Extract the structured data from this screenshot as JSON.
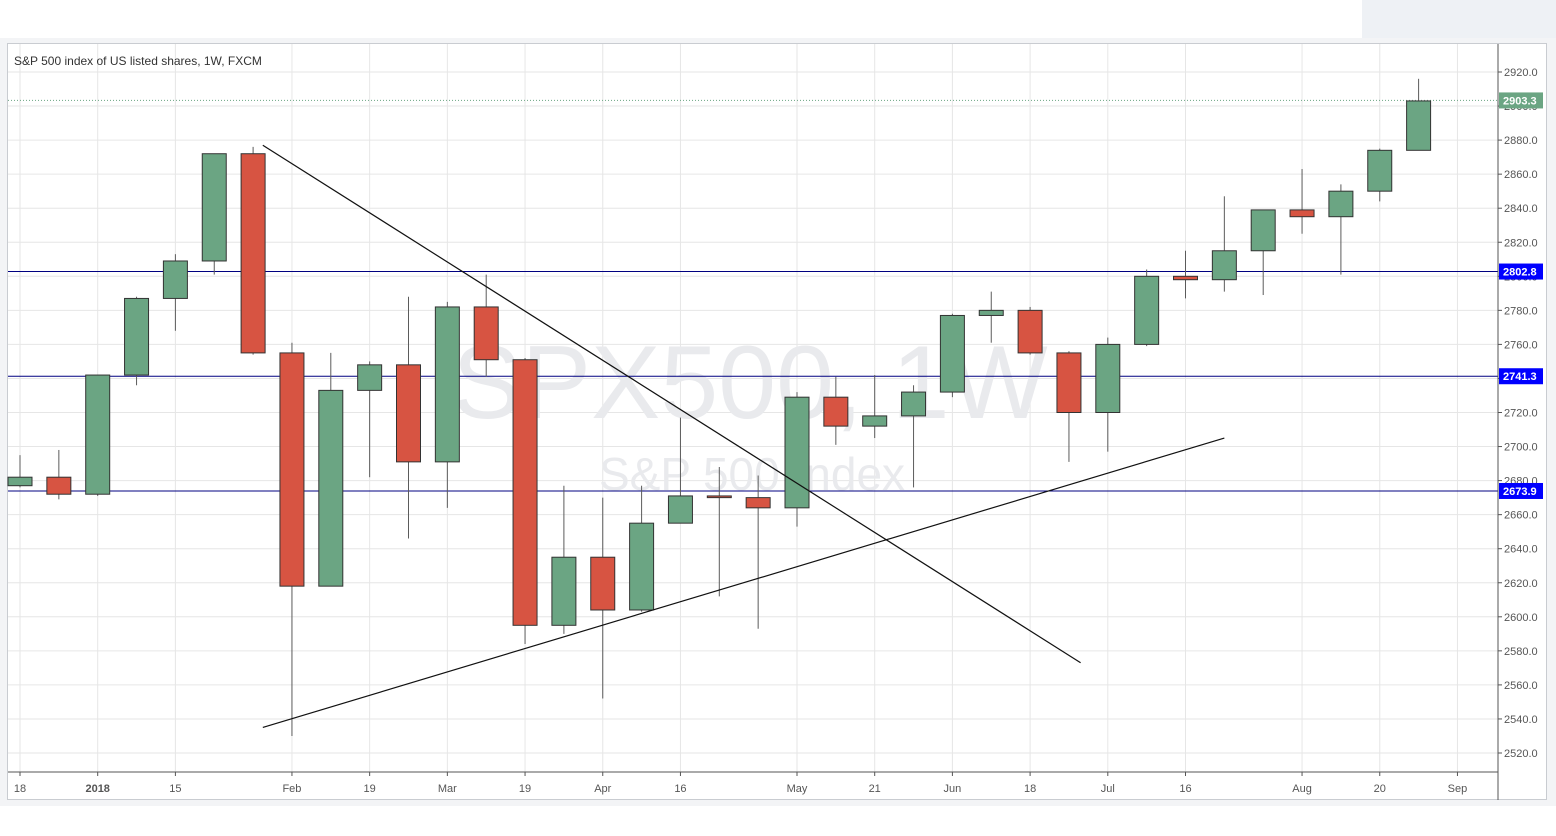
{
  "chart_data": {
    "type": "candlestick",
    "title": "S&P 500 index of US listed shares, 1W, FXCM",
    "watermark": {
      "symbol": "SPX500, 1W",
      "description": "S&P 500 Index"
    },
    "y_range": [
      2510,
      2930
    ],
    "y_ticks": [
      2520,
      2540,
      2560,
      2580,
      2600,
      2620,
      2640,
      2660,
      2680,
      2700,
      2720,
      2740,
      2760,
      2780,
      2800,
      2820,
      2840,
      2860,
      2880,
      2900,
      2920
    ],
    "x_ticks": [
      {
        "label": "18",
        "index": 0
      },
      {
        "label": "2018",
        "index": 2,
        "bold": true
      },
      {
        "label": "15",
        "index": 4
      },
      {
        "label": "Feb",
        "index": 7
      },
      {
        "label": "19",
        "index": 9
      },
      {
        "label": "Mar",
        "index": 11
      },
      {
        "label": "19",
        "index": 13
      },
      {
        "label": "Apr",
        "index": 15
      },
      {
        "label": "16",
        "index": 17
      },
      {
        "label": "May",
        "index": 20
      },
      {
        "label": "21",
        "index": 22
      },
      {
        "label": "Jun",
        "index": 24
      },
      {
        "label": "18",
        "index": 26
      },
      {
        "label": "Jul",
        "index": 28
      },
      {
        "label": "16",
        "index": 30
      },
      {
        "label": "Aug",
        "index": 33
      },
      {
        "label": "20",
        "index": 35
      },
      {
        "label": "Sep",
        "index": 37
      }
    ],
    "candles": [
      {
        "o": 2677,
        "h": 2695,
        "l": 2676,
        "c": 2682
      },
      {
        "o": 2682,
        "h": 2698,
        "l": 2669,
        "c": 2672
      },
      {
        "o": 2672,
        "h": 2742,
        "l": 2671,
        "c": 2742
      },
      {
        "o": 2742,
        "h": 2788,
        "l": 2736,
        "c": 2787
      },
      {
        "o": 2787,
        "h": 2813,
        "l": 2768,
        "c": 2809
      },
      {
        "o": 2809,
        "h": 2872,
        "l": 2801,
        "c": 2872
      },
      {
        "o": 2872,
        "h": 2876,
        "l": 2754,
        "c": 2755
      },
      {
        "o": 2755,
        "h": 2761,
        "l": 2530,
        "c": 2618
      },
      {
        "o": 2618,
        "h": 2755,
        "l": 2618,
        "c": 2733
      },
      {
        "o": 2733,
        "h": 2750,
        "l": 2682,
        "c": 2748
      },
      {
        "o": 2748,
        "h": 2788,
        "l": 2646,
        "c": 2691
      },
      {
        "o": 2691,
        "h": 2785,
        "l": 2664,
        "c": 2782
      },
      {
        "o": 2782,
        "h": 2801,
        "l": 2741,
        "c": 2751
      },
      {
        "o": 2751,
        "h": 2752,
        "l": 2584,
        "c": 2595
      },
      {
        "o": 2595,
        "h": 2677,
        "l": 2590,
        "c": 2635
      },
      {
        "o": 2635,
        "h": 2670,
        "l": 2552,
        "c": 2604
      },
      {
        "o": 2604,
        "h": 2677,
        "l": 2603,
        "c": 2655
      },
      {
        "o": 2655,
        "h": 2717,
        "l": 2655,
        "c": 2671
      },
      {
        "o": 2671,
        "h": 2688,
        "l": 2612,
        "c": 2670
      },
      {
        "o": 2670,
        "h": 2683,
        "l": 2593,
        "c": 2664
      },
      {
        "o": 2664,
        "h": 2732,
        "l": 2653,
        "c": 2729
      },
      {
        "o": 2729,
        "h": 2741,
        "l": 2701,
        "c": 2712
      },
      {
        "o": 2712,
        "h": 2742,
        "l": 2705,
        "c": 2718
      },
      {
        "o": 2718,
        "h": 2736,
        "l": 2676,
        "c": 2732
      },
      {
        "o": 2732,
        "h": 2778,
        "l": 2729,
        "c": 2777
      },
      {
        "o": 2777,
        "h": 2791,
        "l": 2761,
        "c": 2780
      },
      {
        "o": 2780,
        "h": 2782,
        "l": 2754,
        "c": 2755
      },
      {
        "o": 2755,
        "h": 2756,
        "l": 2691,
        "c": 2720
      },
      {
        "o": 2720,
        "h": 2764,
        "l": 2697,
        "c": 2760
      },
      {
        "o": 2760,
        "h": 2804,
        "l": 2759,
        "c": 2800
      },
      {
        "o": 2800,
        "h": 2815,
        "l": 2787,
        "c": 2798
      },
      {
        "o": 2798,
        "h": 2847,
        "l": 2791,
        "c": 2815
      },
      {
        "o": 2815,
        "h": 2839,
        "l": 2789,
        "c": 2839
      },
      {
        "o": 2839,
        "h": 2863,
        "l": 2825,
        "c": 2835
      },
      {
        "o": 2835,
        "h": 2854,
        "l": 2801,
        "c": 2850
      },
      {
        "o": 2850,
        "h": 2875,
        "l": 2844,
        "c": 2874
      },
      {
        "o": 2874,
        "h": 2916,
        "l": 2874,
        "c": 2903
      }
    ],
    "horizontal_levels": [
      {
        "value": 2802.8,
        "label": "2802.8"
      },
      {
        "value": 2741.3,
        "label": "2741.3"
      },
      {
        "value": 2673.9,
        "label": "2673.9"
      }
    ],
    "last_price": {
      "value": 2903.3,
      "label": "2903.3"
    },
    "trend_lines": [
      {
        "from": {
          "index": 6.25,
          "value": 2877
        },
        "to": {
          "index": 27.3,
          "value": 2573
        }
      },
      {
        "from": {
          "index": 6.25,
          "value": 2535
        },
        "to": {
          "index": 31.0,
          "value": 2705
        }
      }
    ],
    "colors": {
      "up": "#6ba583",
      "down": "#d75442",
      "wick": "#5b5b5b",
      "level_line": "#000080",
      "level_label": "#0000ff",
      "last_label": "#6ba583",
      "grid": "#e6e6e6",
      "axis_text": "#555555"
    }
  }
}
